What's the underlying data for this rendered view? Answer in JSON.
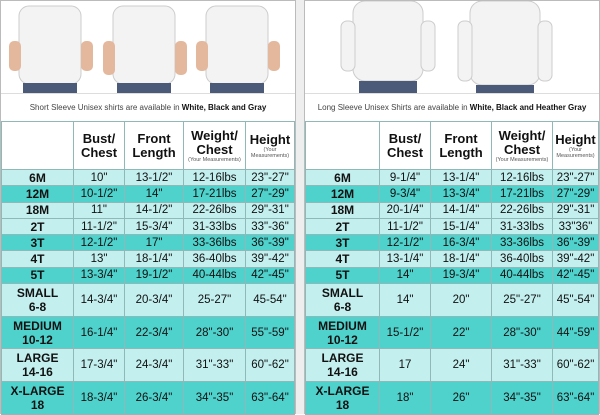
{
  "colors": {
    "light_row": "#c3efee",
    "dark_row": "#4fd1cc",
    "header": "#ffffff"
  },
  "headers": {
    "bust": [
      "Bust/",
      "Chest"
    ],
    "front": [
      "Front",
      "Length"
    ],
    "weight": [
      "Weight/",
      "Chest"
    ],
    "height": "Height",
    "note": "(Your Measurements)"
  },
  "short_sleeve": {
    "caption_plain": "Short Sleeve Unisex shirts are available in ",
    "caption_bold": "White, Black and Gray",
    "rows": [
      {
        "size": [
          "6M"
        ],
        "bust": "10\"",
        "front": "13-1/2\"",
        "weight": "12-16lbs",
        "height": "23\"-27\"",
        "shade": "light"
      },
      {
        "size": [
          "12M"
        ],
        "bust": "10-1/2\"",
        "front": "14\"",
        "weight": "17-21lbs",
        "height": "27\"-29\"",
        "shade": "dark"
      },
      {
        "size": [
          "18M"
        ],
        "bust": "11\"",
        "front": "14-1/2\"",
        "weight": "22-26lbs",
        "height": "29\"-31\"",
        "shade": "light"
      },
      {
        "size": [
          "2T"
        ],
        "bust": "11-1/2\"",
        "front": "15-3/4\"",
        "weight": "31-33lbs",
        "height": "33\"-36\"",
        "shade": "light"
      },
      {
        "size": [
          "3T"
        ],
        "bust": "12-1/2\"",
        "front": "17\"",
        "weight": "33-36lbs",
        "height": "36\"-39\"",
        "shade": "dark"
      },
      {
        "size": [
          "4T"
        ],
        "bust": "13\"",
        "front": "18-1/4\"",
        "weight": "36-40lbs",
        "height": "39\"-42\"",
        "shade": "light"
      },
      {
        "size": [
          "5T"
        ],
        "bust": "13-3/4\"",
        "front": "19-1/2\"",
        "weight": "40-44lbs",
        "height": "42\"-45\"",
        "shade": "dark"
      },
      {
        "size": [
          "SMALL",
          "6-8"
        ],
        "bust": "14-3/4\"",
        "front": "20-3/4\"",
        "weight": "25-27\"",
        "height": "45-54\"",
        "shade": "light"
      },
      {
        "size": [
          "MEDIUM",
          "10-12"
        ],
        "bust": "16-1/4\"",
        "front": "22-3/4\"",
        "weight": "28\"-30\"",
        "height": "55\"-59\"",
        "shade": "dark"
      },
      {
        "size": [
          "LARGE",
          "14-16"
        ],
        "bust": "17-3/4\"",
        "front": "24-3/4\"",
        "weight": "31\"-33\"",
        "height": "60\"-62\"",
        "shade": "light"
      },
      {
        "size": [
          "X-LARGE",
          "18"
        ],
        "bust": "18-3/4\"",
        "front": "26-3/4\"",
        "weight": "34\"-35\"",
        "height": "63\"-64\"",
        "shade": "dark"
      }
    ]
  },
  "long_sleeve": {
    "caption_plain": "Long Sleeve Unisex Shirts are available in ",
    "caption_bold": "White, Black and Heather Gray",
    "rows": [
      {
        "size": [
          "6M"
        ],
        "bust": "9-1/4\"",
        "front": "13-1/4\"",
        "weight": "12-16lbs",
        "height": "23\"-27\"",
        "shade": "light"
      },
      {
        "size": [
          "12M"
        ],
        "bust": "9-3/4\"",
        "front": "13-3/4\"",
        "weight": "17-21lbs",
        "height": "27\"-29\"",
        "shade": "dark"
      },
      {
        "size": [
          "18M"
        ],
        "bust": "20-1/4\"",
        "front": "14-1/4\"",
        "weight": "22-26lbs",
        "height": "29\"-31\"",
        "shade": "light"
      },
      {
        "size": [
          "2T"
        ],
        "bust": "11-1/2\"",
        "front": "15-1/4\"",
        "weight": "31-33lbs",
        "height": "33\"36\"",
        "shade": "light"
      },
      {
        "size": [
          "3T"
        ],
        "bust": "12-1/2\"",
        "front": "16-3/4\"",
        "weight": "33-36lbs",
        "height": "36\"-39\"",
        "shade": "dark"
      },
      {
        "size": [
          "4T"
        ],
        "bust": "13-1/4\"",
        "front": "18-1/4\"",
        "weight": "36-40lbs",
        "height": "39\"-42\"",
        "shade": "light"
      },
      {
        "size": [
          "5T"
        ],
        "bust": "14\"",
        "front": "19-3/4\"",
        "weight": "40-44lbs",
        "height": "42\"-45\"",
        "shade": "dark"
      },
      {
        "size": [
          "SMALL",
          "6-8"
        ],
        "bust": "14\"",
        "front": "20\"",
        "weight": "25\"-27\"",
        "height": "45\"-54\"",
        "shade": "light"
      },
      {
        "size": [
          "MEDIUM",
          "10-12"
        ],
        "bust": "15-1/2\"",
        "front": "22\"",
        "weight": "28\"-30\"",
        "height": "44\"-59\"",
        "shade": "dark"
      },
      {
        "size": [
          "LARGE",
          "14-16"
        ],
        "bust": "17",
        "front": "24\"",
        "weight": "31\"-33\"",
        "height": "60\"-62\"",
        "shade": "light"
      },
      {
        "size": [
          "X-LARGE",
          "18"
        ],
        "bust": "18\"",
        "front": "26\"",
        "weight": "34\"-35\"",
        "height": "63\"-64\"",
        "shade": "dark"
      }
    ]
  }
}
